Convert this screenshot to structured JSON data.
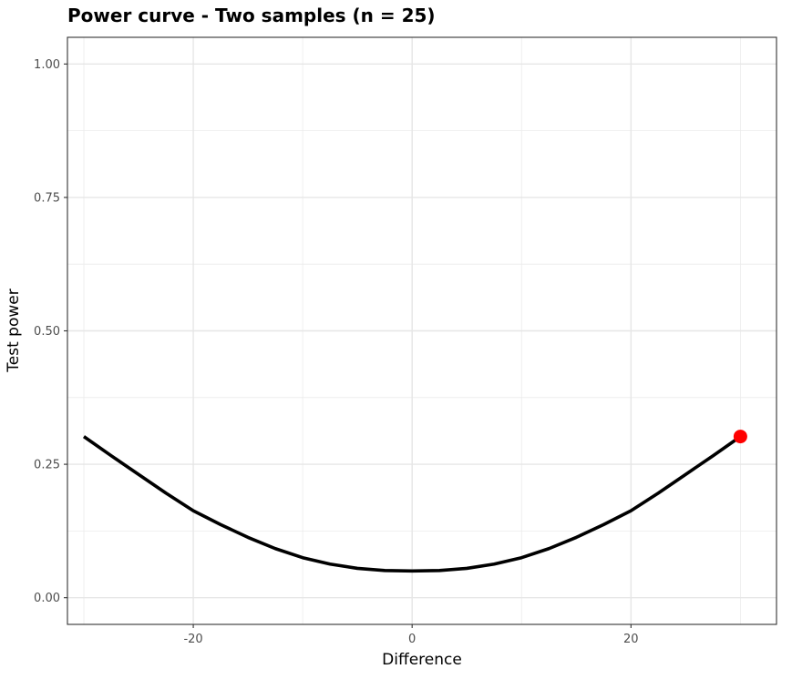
{
  "chart_data": {
    "type": "line",
    "title": "Power curve - Two samples (n =  25)",
    "xlabel": "Difference",
    "ylabel": "Test power",
    "xlim": [
      -31.5,
      33.3
    ],
    "ylim": [
      -0.05,
      1.05
    ],
    "x_ticks": [
      -20,
      0,
      20
    ],
    "x_tick_labels": [
      "-20",
      "0",
      "20"
    ],
    "x_minor_ticks": [
      -30,
      -10,
      10,
      30
    ],
    "y_ticks": [
      0,
      0.25,
      0.5,
      0.75,
      1
    ],
    "y_tick_labels": [
      "0.00",
      "0.25",
      "0.50",
      "0.75",
      "1.00"
    ],
    "y_minor_ticks": [
      0.125,
      0.375,
      0.625,
      0.875
    ],
    "grid": true,
    "series": [
      {
        "color": "#000000",
        "x": [
          -30,
          -27.5,
          -25,
          -22.5,
          -20,
          -17.5,
          -15,
          -12.5,
          -10,
          -7.5,
          -5,
          -2.5,
          0,
          2.5,
          5,
          7.5,
          10,
          12.5,
          15,
          17.5,
          20,
          22.5,
          25,
          27.5,
          30
        ],
        "y": [
          0.302,
          0.266,
          0.231,
          0.196,
          0.163,
          0.137,
          0.113,
          0.092,
          0.075,
          0.063,
          0.055,
          0.051,
          0.05,
          0.051,
          0.055,
          0.063,
          0.075,
          0.092,
          0.113,
          0.137,
          0.163,
          0.196,
          0.231,
          0.266,
          0.302
        ]
      }
    ],
    "highlight_point": {
      "x": 30,
      "y": 0.302,
      "color": "#ff0000"
    }
  }
}
